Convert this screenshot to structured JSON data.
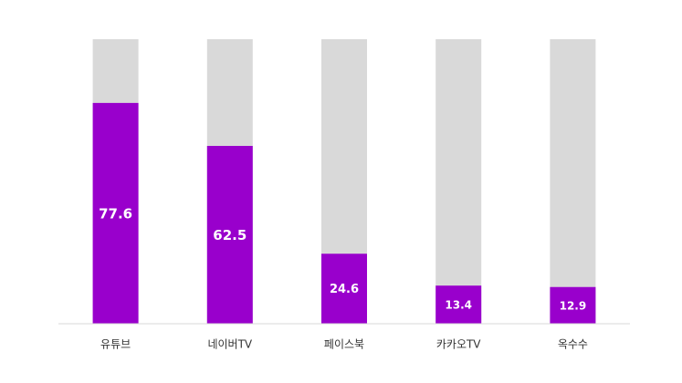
{
  "chart_data": {
    "type": "bar",
    "categories": [
      "유튜브",
      "네이버TV",
      "페이스북",
      "카카오TV",
      "옥수수"
    ],
    "values": [
      77.6,
      62.5,
      24.6,
      13.4,
      12.9
    ],
    "color": "#9900cc",
    "track_color": "#d9d9d9",
    "ylim": [
      0,
      100
    ]
  }
}
